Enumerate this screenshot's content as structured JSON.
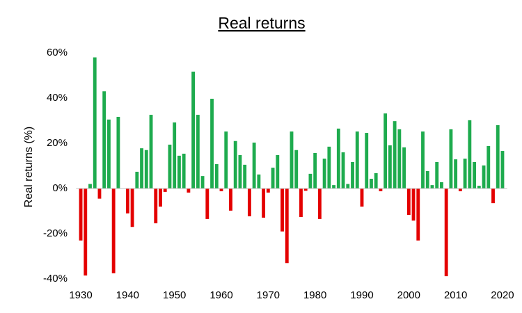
{
  "chart_data": {
    "type": "bar",
    "title": "Real returns",
    "ylabel": "Real returns (%)",
    "x": [
      1930,
      1931,
      1932,
      1933,
      1934,
      1935,
      1936,
      1937,
      1938,
      1939,
      1940,
      1941,
      1942,
      1943,
      1944,
      1945,
      1946,
      1947,
      1948,
      1949,
      1950,
      1951,
      1952,
      1953,
      1954,
      1955,
      1956,
      1957,
      1958,
      1959,
      1960,
      1961,
      1962,
      1963,
      1964,
      1965,
      1966,
      1967,
      1968,
      1969,
      1970,
      1971,
      1972,
      1973,
      1974,
      1975,
      1976,
      1977,
      1978,
      1979,
      1980,
      1981,
      1982,
      1983,
      1984,
      1985,
      1986,
      1987,
      1988,
      1989,
      1990,
      1991,
      1992,
      1993,
      1994,
      1995,
      1996,
      1997,
      1998,
      1999,
      2000,
      2001,
      2002,
      2003,
      2004,
      2005,
      2006,
      2007,
      2008,
      2009,
      2010,
      2011,
      2012,
      2013,
      2014,
      2015,
      2016,
      2017,
      2018,
      2019,
      2020
    ],
    "values": [
      -23,
      -38.5,
      2,
      58,
      -4.5,
      43,
      30.5,
      -37.5,
      31.7,
      0,
      -11,
      -17,
      7.4,
      17.8,
      17,
      32.6,
      -15.4,
      -8,
      -1.5,
      19.4,
      29.2,
      14.5,
      15.4,
      -1.8,
      51.7,
      32.6,
      5.5,
      -13.5,
      39.7,
      10.8,
      -1.2,
      25.2,
      -9.8,
      21,
      14.8,
      10.5,
      -12.3,
      20.3,
      6.2,
      -12.9,
      -1.8,
      9.2,
      14.8,
      -19,
      -33,
      25.2,
      17,
      -12.6,
      -1,
      6.5,
      15.7,
      -13.5,
      13.2,
      18.5,
      1.5,
      26.5,
      16,
      2,
      11.7,
      25.2,
      -8,
      24.6,
      4.3,
      6.8,
      -1.2,
      33.2,
      19.1,
      29.8,
      26.2,
      18.2,
      -11.7,
      -14.2,
      -23,
      25.2,
      7.7,
      1.5,
      11.7,
      2.8,
      -38.8,
      26.2,
      12.9,
      -1.2,
      13.2,
      30.2,
      11.7,
      1.2,
      10.2,
      18.8,
      -6.5,
      28,
      16.6
    ],
    "positive_color": "#1eab4e",
    "negative_color": "#e40000",
    "xlim": [
      1929,
      2021
    ],
    "xticks": [
      1930,
      1940,
      1950,
      1960,
      1970,
      1980,
      1990,
      2000,
      2010,
      2020
    ],
    "ylim": [
      -40,
      60
    ],
    "yticks": [
      {
        "value": -40,
        "label": "-40%"
      },
      {
        "value": -20,
        "label": "-20%"
      },
      {
        "value": 0,
        "label": "0%"
      },
      {
        "value": 20,
        "label": "20%"
      },
      {
        "value": 40,
        "label": "40%"
      },
      {
        "value": 60,
        "label": "60%"
      }
    ],
    "grid": false
  }
}
